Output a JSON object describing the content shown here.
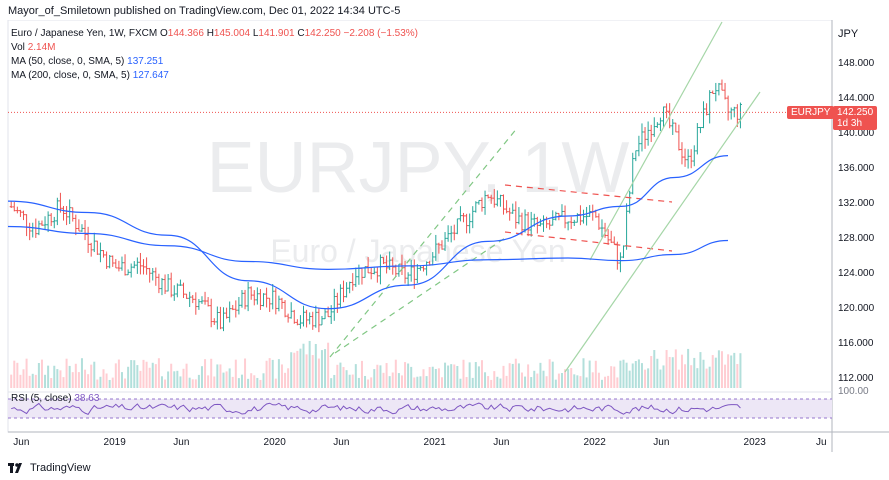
{
  "header": {
    "published_by": "Mayor_of_Smiletown published on TradingView.com, Dec 01, 2022 14:34 UTC-5"
  },
  "legend": {
    "symbol": "Euro / Japanese Yen, 1W, FXCM",
    "ohlc": [
      {
        "key": "O",
        "value": "144.366"
      },
      {
        "key": "H",
        "value": "145.004"
      },
      {
        "key": "L",
        "value": "141.901"
      },
      {
        "key": "C",
        "value": "142.250"
      }
    ],
    "change": "−2.208 (−1.53%)",
    "vol_label": "Vol",
    "vol_value": "2.14M",
    "ma50_label": "MA (50, close, 0, SMA, 5)",
    "ma50_value": "137.251",
    "ma200_label": "MA (200, close, 0, SMA, 5)",
    "ma200_value": "127.647"
  },
  "watermark": {
    "ticker": "EURJPY, 1W",
    "name": "Euro / Japanese Yen"
  },
  "axis": {
    "currency": "JPY",
    "y_ticks": [
      "148.000",
      "144.000",
      "140.000",
      "136.000",
      "132.000",
      "128.000",
      "124.000",
      "120.000",
      "116.000",
      "112.000"
    ],
    "x_ticks": [
      "Jun",
      "2019",
      "Jun",
      "2020",
      "Jun",
      "2021",
      "Jun",
      "2022",
      "Jun",
      "2023",
      "Ju"
    ]
  },
  "price_label": {
    "symbol": "EURJPY",
    "price": "142.250",
    "countdown": "1d 3h"
  },
  "rsi": {
    "label": "RSI (5, close)",
    "value": "38.63",
    "level": "100.00"
  },
  "footer": {
    "brand": "TradingView"
  },
  "colors": {
    "up": "#26a69a",
    "down": "#ef5350",
    "ma": "#2962ff",
    "channel": "#81c784",
    "resistance": "#ef5350",
    "rsi": "#7e57c2",
    "rsi_band": "#ede7f6"
  },
  "chart_data": {
    "type": "candlestick",
    "title": "Euro / Japanese Yen, 1W, FXCM",
    "ylim": [
      110,
      151
    ],
    "y_unit": "JPY",
    "x_range": [
      "2018-05",
      "2023-07"
    ],
    "series": [
      {
        "name": "MA (50, close, 0, SMA, 5)",
        "last": 137.251,
        "points": [
          [
            "2018-05",
            132.1
          ],
          [
            "2018-11",
            130.8
          ],
          [
            "2019-05",
            128.2
          ],
          [
            "2019-11",
            123.0
          ],
          [
            "2020-05",
            119.8
          ],
          [
            "2020-11",
            122.5
          ],
          [
            "2021-05",
            127.5
          ],
          [
            "2021-11",
            130.4
          ],
          [
            "2022-03",
            131.5
          ],
          [
            "2022-07",
            134.8
          ],
          [
            "2022-11",
            137.3
          ]
        ]
      },
      {
        "name": "MA (200, close, 0, SMA, 5)",
        "last": 127.647,
        "points": [
          [
            "2018-05",
            129.2
          ],
          [
            "2018-11",
            128.4
          ],
          [
            "2019-05",
            127.0
          ],
          [
            "2019-11",
            125.2
          ],
          [
            "2020-05",
            124.3
          ],
          [
            "2020-11",
            124.7
          ],
          [
            "2021-05",
            125.4
          ],
          [
            "2021-11",
            125.6
          ],
          [
            "2022-03",
            125.3
          ],
          [
            "2022-07",
            126.0
          ],
          [
            "2022-11",
            127.6
          ]
        ]
      }
    ],
    "weekly_closes": [
      [
        "2018-05",
        131.8
      ],
      [
        "2018-07",
        129.0
      ],
      [
        "2018-09",
        131.5
      ],
      [
        "2018-11",
        128.0
      ],
      [
        "2019-01",
        124.5
      ],
      [
        "2019-03",
        124.8
      ],
      [
        "2019-05",
        122.2
      ],
      [
        "2019-07",
        121.0
      ],
      [
        "2019-09",
        118.0
      ],
      [
        "2019-11",
        121.5
      ],
      [
        "2020-01",
        121.0
      ],
      [
        "2020-03",
        118.5
      ],
      [
        "2020-05",
        119.0
      ],
      [
        "2020-07",
        124.0
      ],
      [
        "2020-09",
        124.7
      ],
      [
        "2020-11",
        123.5
      ],
      [
        "2021-01",
        126.3
      ],
      [
        "2021-03",
        129.5
      ],
      [
        "2021-05",
        133.0
      ],
      [
        "2021-07",
        130.2
      ],
      [
        "2021-09",
        129.0
      ],
      [
        "2021-11",
        130.2
      ],
      [
        "2022-01",
        130.5
      ],
      [
        "2022-03",
        125.0
      ],
      [
        "2022-04",
        138.0
      ],
      [
        "2022-06",
        142.5
      ],
      [
        "2022-08",
        136.5
      ],
      [
        "2022-10",
        145.5
      ],
      [
        "2022-11",
        142.25
      ]
    ],
    "last": {
      "open": 144.366,
      "high": 145.004,
      "low": 141.901,
      "close": 142.25,
      "change": -2.208,
      "change_pct": -1.53
    }
  }
}
